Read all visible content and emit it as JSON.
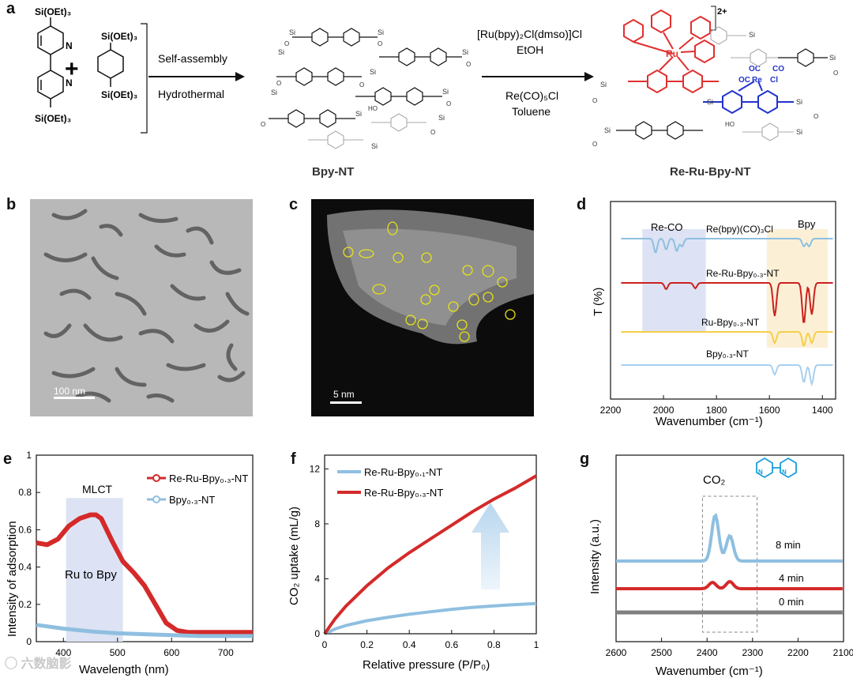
{
  "panel_labels": {
    "a": "a",
    "b": "b",
    "c": "c",
    "d": "d",
    "e": "e",
    "f": "f",
    "g": "g"
  },
  "scheme": {
    "monomer1_label": "Si(OEt)₃",
    "monomer1_label_bottom": "Si(OEt)₃",
    "plus": "+",
    "monomer2_label_top": "Si(OEt)₃",
    "monomer2_label_bottom": "Si(OEt)₃",
    "step1_line1": "Self-assembly",
    "step1_line2": "Hydrothermal",
    "product1": "Bpy-NT",
    "step2_line1": "[Ru(bpy)₂Cl(dmso)]Cl",
    "step2_line2": "EtOH",
    "step2_line3": "Re(CO)₅Cl",
    "step2_line4": "Toluene",
    "product2": "Re-Ru-Bpy-NT",
    "charge": "2+",
    "ru_label": "Ru",
    "re_label": "Re",
    "cl_label": "Cl",
    "co_label": "CO",
    "oc_label": "OC",
    "n_label": "N",
    "si_label": "Si",
    "o_label": "O",
    "ho_label": "HO",
    "colors": {
      "ru_complex": "#e03030",
      "re_complex": "#2233cc",
      "gray": "#9a9a9a"
    }
  },
  "tem_b": {
    "scalebar": "100 nm"
  },
  "stem_c": {
    "scalebar": "5 nm"
  },
  "watermark": "六数脑影",
  "chart_data": [
    {
      "panel": "d",
      "type": "line",
      "xlabel": "Wavenumber (cm⁻¹)",
      "ylabel": "T (%)",
      "xlim": [
        2200,
        1350
      ],
      "xticks": [
        2200,
        2000,
        1800,
        1600,
        1400
      ],
      "band_labels": [
        "Re-CO",
        "Bpy"
      ],
      "series": [
        {
          "name": "Re(bpy)(CO)₃Cl",
          "color": "#8fbfe0"
        },
        {
          "name": "Re-Ru-Bpy₀.₃-NT",
          "color": "#cc2020"
        },
        {
          "name": "Ru-Bpy₀.₃-NT",
          "color": "#f5cf4a"
        },
        {
          "name": "Bpy₀.₃-NT",
          "color": "#a8d0ef"
        }
      ]
    },
    {
      "panel": "e",
      "type": "line",
      "xlabel": "Wavelength (nm)",
      "ylabel": "Intensity of adsorption",
      "xlim": [
        350,
        750
      ],
      "ylim": [
        0,
        1.0
      ],
      "xticks": [
        400,
        500,
        600,
        700
      ],
      "yticks": [
        0.0,
        0.2,
        0.4,
        0.6,
        0.8,
        1.0
      ],
      "annotations": [
        "MLCT",
        "Ru to Bpy"
      ],
      "series": [
        {
          "name": "Re-Ru-Bpy₀.₃-NT",
          "color": "#d42a2a",
          "x": [
            350,
            370,
            390,
            410,
            430,
            450,
            460,
            470,
            490,
            510,
            530,
            550,
            570,
            590,
            610,
            630,
            650,
            700,
            750
          ],
          "y": [
            0.53,
            0.52,
            0.55,
            0.62,
            0.66,
            0.68,
            0.68,
            0.66,
            0.54,
            0.43,
            0.37,
            0.3,
            0.2,
            0.1,
            0.06,
            0.05,
            0.05,
            0.05,
            0.05
          ]
        },
        {
          "name": "Bpy₀.₃-NT",
          "color": "#8fbfe0",
          "x": [
            350,
            400,
            450,
            500,
            550,
            600,
            650,
            700,
            750
          ],
          "y": [
            0.09,
            0.07,
            0.055,
            0.045,
            0.04,
            0.035,
            0.03,
            0.03,
            0.03
          ]
        }
      ]
    },
    {
      "panel": "f",
      "type": "line",
      "xlabel": "Relative pressure (P/P₀)",
      "ylabel": "CO₂ uptake (mL/g)",
      "xlim": [
        0,
        1.0
      ],
      "ylim": [
        0,
        13
      ],
      "xticks": [
        0.0,
        0.2,
        0.4,
        0.6,
        0.8,
        1.0
      ],
      "yticks": [
        0,
        4,
        8,
        12
      ],
      "series": [
        {
          "name": "Re-Ru-Bpy₀.₁-NT",
          "color": "#8fbfe0",
          "x": [
            0,
            0.05,
            0.1,
            0.2,
            0.3,
            0.4,
            0.5,
            0.6,
            0.7,
            0.8,
            0.9,
            1.0
          ],
          "y": [
            0,
            0.35,
            0.6,
            0.95,
            1.2,
            1.42,
            1.6,
            1.78,
            1.92,
            2.03,
            2.12,
            2.2
          ]
        },
        {
          "name": "Re-Ru-Bpy₀.₃-NT",
          "color": "#d42a2a",
          "x": [
            0,
            0.05,
            0.1,
            0.2,
            0.3,
            0.4,
            0.5,
            0.6,
            0.7,
            0.8,
            0.9,
            1.0
          ],
          "y": [
            0,
            1.1,
            2.0,
            3.5,
            4.8,
            5.9,
            6.9,
            7.9,
            8.9,
            9.8,
            10.6,
            11.5
          ]
        }
      ]
    },
    {
      "panel": "g",
      "type": "line",
      "xlabel": "Wavenumber (cm⁻¹)",
      "ylabel": "Intensity (a.u.)",
      "xlim": [
        2600,
        2100
      ],
      "xticks": [
        2600,
        2500,
        2400,
        2300,
        2200,
        2100
      ],
      "annotation": "CO₂",
      "series": [
        {
          "name": "8 min",
          "color": "#8fbfe0"
        },
        {
          "name": "4 min",
          "color": "#d42a2a"
        },
        {
          "name": "0 min",
          "color": "#808080"
        }
      ]
    }
  ]
}
